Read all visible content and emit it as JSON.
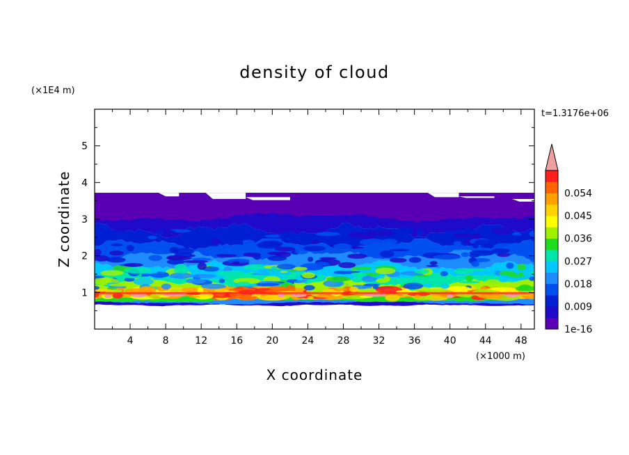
{
  "chart_data": {
    "type": "heatmap",
    "title": "density of cloud",
    "xlabel": "X coordinate",
    "ylabel": "Z coordinate",
    "x_unit": "(×1000 m)",
    "y_unit": "(×1E4 m)",
    "time_label": "t=1.3176e+06",
    "xlim": [
      0,
      49.5
    ],
    "ylim": [
      0,
      6
    ],
    "x_ticks": [
      4,
      8,
      12,
      16,
      20,
      24,
      28,
      32,
      36,
      40,
      44,
      48
    ],
    "y_ticks": [
      1,
      2,
      3,
      4,
      5
    ],
    "colorbar": {
      "levels": [
        1e-16,
        0.0045,
        0.009,
        0.0135,
        0.018,
        0.0225,
        0.027,
        0.0315,
        0.036,
        0.0405,
        0.045,
        0.0495,
        0.054,
        0.0585
      ],
      "labels": [
        "1e-16",
        "0.009",
        "0.018",
        "0.027",
        "0.036",
        "0.045",
        "0.054"
      ],
      "colors": [
        "#5a00b4",
        "#1e0ac8",
        "#001ed2",
        "#0050f0",
        "#1e8cff",
        "#00c8ff",
        "#00e6aa",
        "#1edc1e",
        "#a0f000",
        "#ffff00",
        "#ffd200",
        "#ffa000",
        "#ff6400",
        "#ff1e1e"
      ],
      "extend_color": "#f0a0a0",
      "extend": "max"
    },
    "field_profile": {
      "z_bottom": 0.65,
      "z_top": 3.72,
      "bands": [
        {
          "z": 0.66,
          "level": 1
        },
        {
          "z": 0.72,
          "level": 4
        },
        {
          "z": 0.78,
          "level": 7
        },
        {
          "z": 0.86,
          "level": 11
        },
        {
          "z": 0.95,
          "level": 13
        },
        {
          "z": 1.02,
          "level": 10
        },
        {
          "z": 1.1,
          "level": 8
        },
        {
          "z": 1.25,
          "level": 6
        },
        {
          "z": 1.45,
          "level": 5
        },
        {
          "z": 1.7,
          "level": 4
        },
        {
          "z": 2.0,
          "level": 3
        },
        {
          "z": 2.3,
          "level": 2
        },
        {
          "z": 2.7,
          "level": 1
        },
        {
          "z": 3.72,
          "level": 0
        }
      ],
      "peak_level": 14
    }
  }
}
